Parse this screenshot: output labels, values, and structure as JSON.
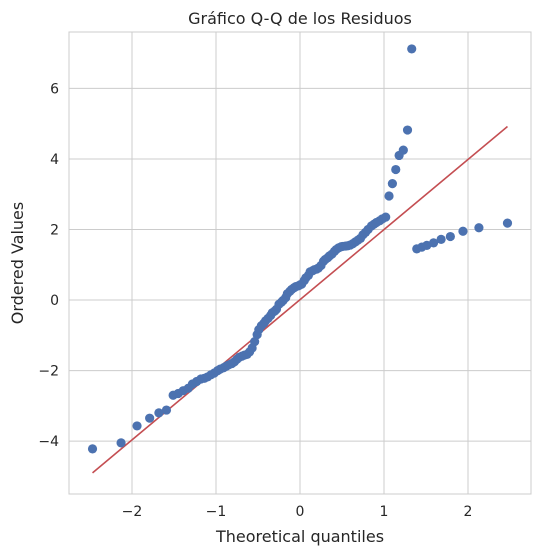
{
  "chart_data": {
    "type": "scatter",
    "title": "Gráfico Q-Q de los Residuos",
    "xlabel": "Theoretical quantiles",
    "ylabel": "Ordered Values",
    "xlim": [
      -2.75,
      2.75
    ],
    "ylim": [
      -5.5,
      7.6
    ],
    "xticks": [
      -2,
      -1,
      0,
      1,
      2
    ],
    "yticks": [
      -4,
      -2,
      0,
      2,
      4,
      6
    ],
    "xtick_labels": [
      "−2",
      "−1",
      "0",
      "1",
      "2"
    ],
    "ytick_labels": [
      "−4",
      "−2",
      "0",
      "2",
      "4",
      "6"
    ],
    "grid": true,
    "colors": {
      "points": "#4c72b0",
      "fit_line": "#c44e52",
      "grid": "#cccccc",
      "axes_edge": "#cccccc"
    },
    "fit_line": {
      "x": [
        -2.47,
        2.47
      ],
      "y": [
        -4.9,
        4.92
      ]
    },
    "points": {
      "x": [
        -2.47,
        -2.13,
        -1.94,
        -1.79,
        -1.68,
        -1.59,
        -1.51,
        -1.45,
        -1.39,
        -1.33,
        -1.28,
        -1.23,
        -1.18,
        -1.14,
        -1.1,
        -1.06,
        -1.02,
        -0.98,
        -0.95,
        -0.91,
        -0.88,
        -0.85,
        -0.81,
        -0.78,
        -0.75,
        -0.72,
        -0.69,
        -0.66,
        -0.63,
        -0.6,
        -0.57,
        -0.54,
        -0.51,
        -0.49,
        -0.46,
        -0.43,
        -0.41,
        -0.38,
        -0.35,
        -0.33,
        -0.3,
        -0.28,
        -0.25,
        -0.22,
        -0.2,
        -0.17,
        -0.15,
        -0.12,
        -0.1,
        -0.07,
        -0.05,
        -0.02,
        0.0,
        0.02,
        0.05,
        0.07,
        0.1,
        0.12,
        0.15,
        0.17,
        0.2,
        0.22,
        0.25,
        0.28,
        0.3,
        0.33,
        0.35,
        0.38,
        0.41,
        0.43,
        0.46,
        0.49,
        0.51,
        0.54,
        0.57,
        0.6,
        0.63,
        0.66,
        0.69,
        0.72,
        0.75,
        0.78,
        0.81,
        0.85,
        0.88,
        0.91,
        0.95,
        0.98,
        1.02,
        1.06,
        1.1,
        1.14,
        1.18,
        1.23,
        1.28,
        1.33,
        1.39,
        1.45,
        1.51,
        1.59,
        1.68,
        1.79,
        1.94,
        2.13,
        2.47
      ],
      "y": [
        -4.22,
        -4.05,
        -3.57,
        -3.35,
        -3.2,
        -3.12,
        -2.7,
        -2.65,
        -2.57,
        -2.5,
        -2.38,
        -2.31,
        -2.24,
        -2.22,
        -2.18,
        -2.12,
        -2.07,
        -2.0,
        -1.96,
        -1.92,
        -1.88,
        -1.84,
        -1.8,
        -1.75,
        -1.68,
        -1.62,
        -1.59,
        -1.56,
        -1.54,
        -1.47,
        -1.36,
        -1.18,
        -0.98,
        -0.84,
        -0.73,
        -0.66,
        -0.59,
        -0.52,
        -0.44,
        -0.36,
        -0.31,
        -0.26,
        -0.12,
        -0.06,
        -0.01,
        0.07,
        0.18,
        0.25,
        0.3,
        0.35,
        0.38,
        0.4,
        0.43,
        0.45,
        0.55,
        0.63,
        0.7,
        0.8,
        0.83,
        0.86,
        0.88,
        0.91,
        0.98,
        1.1,
        1.15,
        1.2,
        1.25,
        1.3,
        1.38,
        1.43,
        1.48,
        1.51,
        1.52,
        1.53,
        1.54,
        1.56,
        1.6,
        1.65,
        1.7,
        1.75,
        1.85,
        1.92,
        2.0,
        2.1,
        2.15,
        2.2,
        2.25,
        2.3,
        2.35,
        2.95,
        3.3,
        3.7,
        4.1,
        4.25,
        4.82,
        7.12,
        1.45,
        1.5,
        1.55,
        1.62,
        1.72,
        1.8,
        1.95,
        2.05,
        2.18
      ]
    }
  }
}
